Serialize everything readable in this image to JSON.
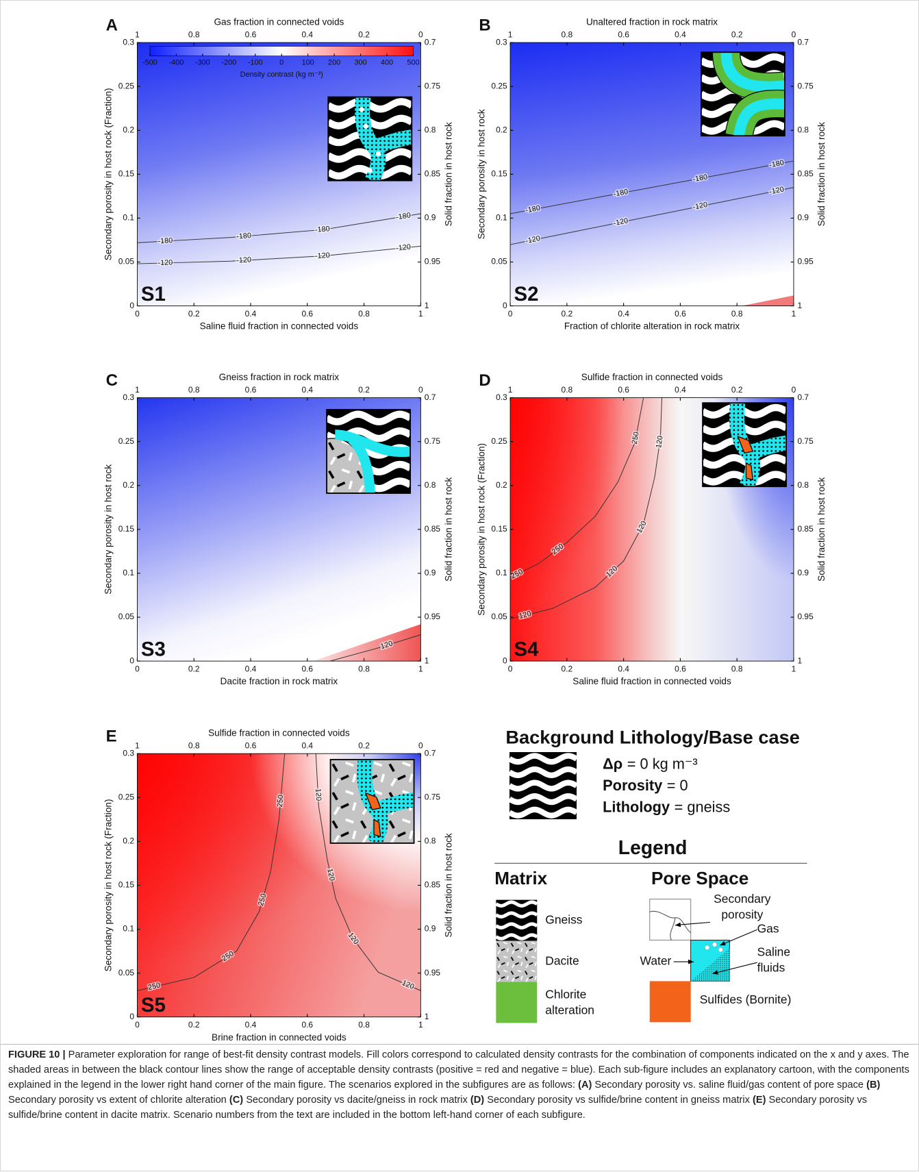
{
  "chart_data": [
    {
      "type": "contour",
      "panel_label": "A",
      "scenario": "S1",
      "x2_label": "Gas fraction in connected voids",
      "x_label": "Saline fluid fraction in connected voids",
      "y_label": "Secondary porosity in host rock (Fraction)",
      "y2_label": "Solid fraction in host rock",
      "xlim": [
        0,
        1
      ],
      "xticks": [
        0,
        0.2,
        0.4,
        0.6,
        0.8,
        1
      ],
      "x2lim": [
        1,
        0
      ],
      "x2ticks": [
        1,
        0.8,
        0.6,
        0.4,
        0.2,
        0
      ],
      "ylim": [
        0,
        0.3
      ],
      "yticks": [
        0,
        0.05,
        0.1,
        0.15,
        0.2,
        0.25,
        0.3
      ],
      "y2lim": [
        1,
        0.7
      ],
      "y2ticks": [
        0.7,
        0.75,
        0.8,
        0.85,
        0.9,
        0.95,
        1
      ],
      "contours": [
        {
          "level": -180
        },
        {
          "level": -120
        }
      ],
      "colorbar": {
        "label": "Density contrast (kg m⁻³)",
        "lim": [
          -500,
          500
        ],
        "ticks": [
          -500,
          -400,
          -300,
          -200,
          -100,
          0,
          100,
          200,
          300,
          400,
          500
        ]
      }
    },
    {
      "type": "contour",
      "panel_label": "B",
      "scenario": "S2",
      "x2_label": "Unaltered fraction in rock matrix",
      "x_label": "Fraction of chlorite alteration in rock matrix",
      "y_label": "Secondary porosity in host rock",
      "y2_label": "Solid fraction in host rock",
      "xlim": [
        0,
        1
      ],
      "xticks": [
        0,
        0.2,
        0.4,
        0.6,
        0.8,
        1
      ],
      "x2lim": [
        1,
        0
      ],
      "x2ticks": [
        1,
        0.8,
        0.6,
        0.4,
        0.2,
        0
      ],
      "ylim": [
        0,
        0.3
      ],
      "yticks": [
        0,
        0.05,
        0.1,
        0.15,
        0.2,
        0.25,
        0.3
      ],
      "y2lim": [
        1,
        0.7
      ],
      "y2ticks": [
        0.7,
        0.75,
        0.8,
        0.85,
        0.9,
        0.95,
        1
      ],
      "contours": [
        {
          "level": -180
        },
        {
          "level": -120
        }
      ]
    },
    {
      "type": "contour",
      "panel_label": "C",
      "scenario": "S3",
      "x2_label": "Gneiss fraction in rock matrix",
      "x_label": "Dacite fraction in rock matrix",
      "y_label": "Secondary porosity in host rock",
      "y2_label": "Solid fraction in host rock",
      "xlim": [
        0,
        1
      ],
      "xticks": [
        0,
        0.2,
        0.4,
        0.6,
        0.8,
        1
      ],
      "x2lim": [
        1,
        0
      ],
      "x2ticks": [
        1,
        0.8,
        0.6,
        0.4,
        0.2,
        0
      ],
      "ylim": [
        0,
        0.3
      ],
      "yticks": [
        0,
        0.05,
        0.1,
        0.15,
        0.2,
        0.25,
        0.3
      ],
      "y2lim": [
        1,
        0.7
      ],
      "y2ticks": [
        0.7,
        0.75,
        0.8,
        0.85,
        0.9,
        0.95,
        1
      ],
      "contours": [
        {
          "level": 120
        }
      ]
    },
    {
      "type": "contour",
      "panel_label": "D",
      "scenario": "S4",
      "x2_label": "Sulfide fraction in connected voids",
      "x_label": "Saline fluid fraction in connected voids",
      "y_label": "Secondary porosity in host rock (Fraction)",
      "y2_label": "Solid fraction in host rock",
      "xlim": [
        0,
        1
      ],
      "xticks": [
        0,
        0.2,
        0.4,
        0.6,
        0.8,
        1
      ],
      "x2lim": [
        1,
        0
      ],
      "x2ticks": [
        1,
        0.8,
        0.6,
        0.4,
        0.2,
        0
      ],
      "ylim": [
        0,
        0.3
      ],
      "yticks": [
        0,
        0.05,
        0.1,
        0.15,
        0.2,
        0.25,
        0.3
      ],
      "y2lim": [
        1,
        0.7
      ],
      "y2ticks": [
        0.7,
        0.75,
        0.8,
        0.85,
        0.9,
        0.95,
        1
      ],
      "contours": [
        {
          "level": 250
        },
        {
          "level": 120
        }
      ]
    },
    {
      "type": "contour",
      "panel_label": "E",
      "scenario": "S5",
      "x2_label": "Sulfide fraction in connected voids",
      "x_label": "Brine fraction in connected voids",
      "y_label": "Secondary porosity in host rock (Fraction)",
      "y2_label": "Solid fraction in host rock",
      "xlim": [
        0,
        1
      ],
      "xticks": [
        0,
        0.2,
        0.4,
        0.6,
        0.8,
        1
      ],
      "x2lim": [
        1,
        0
      ],
      "x2ticks": [
        1,
        0.8,
        0.6,
        0.4,
        0.2,
        0
      ],
      "ylim": [
        0,
        0.3
      ],
      "yticks": [
        0,
        0.05,
        0.1,
        0.15,
        0.2,
        0.25,
        0.3
      ],
      "y2lim": [
        1,
        0.7
      ],
      "y2ticks": [
        0.7,
        0.75,
        0.8,
        0.85,
        0.9,
        0.95,
        1
      ],
      "contours": [
        {
          "level": 250
        },
        {
          "level": 120
        }
      ]
    }
  ],
  "legend": {
    "base": {
      "title": "Background Lithology/Base case",
      "items": [
        {
          "term": "Δρ",
          "value": "= 0 kg m⁻³"
        },
        {
          "term": "Porosity",
          "value": "= 0"
        },
        {
          "term": "Lithology",
          "value": "= gneiss"
        }
      ]
    },
    "title": "Legend",
    "matrix": {
      "title": "Matrix",
      "items": [
        "Gneiss",
        "Dacite",
        "Chlorite alteration"
      ]
    },
    "pore": {
      "title": "Pore Space",
      "items": [
        "Secondary porosity",
        "Gas",
        "Water",
        "Saline fluids",
        "Sulfides (Bornite)"
      ]
    }
  },
  "caption": {
    "label": "FIGURE 10 |",
    "text": "Parameter exploration for range of best-fit density contrast models. Fill colors correspond to calculated density contrasts for the combination of components indicated on the x and y axes. The shaded areas in between the black contour lines show the range of acceptable density contrasts (positive = red and negative = blue). Each sub-figure includes an explanatory cartoon, with the components explained in the legend in the lower right hand corner of the main figure. The scenarios explored in the subfigures are as follows:",
    "scenarios": [
      {
        "tag": "(A)",
        "text": "Secondary porosity vs. saline fluid/gas content of pore space"
      },
      {
        "tag": "(B)",
        "text": "Secondary porosity vs extent of chlorite alteration"
      },
      {
        "tag": "(C)",
        "text": "Secondary porosity vs dacite/gneiss in rock matrix"
      },
      {
        "tag": "(D)",
        "text": "Secondary porosity vs sulfide/brine content in gneiss matrix"
      },
      {
        "tag": "(E)",
        "text": "Secondary porosity vs sulfide/brine content in dacite matrix."
      }
    ],
    "closing": "Scenario numbers from the text are included in the bottom left-hand corner of each subfigure."
  }
}
